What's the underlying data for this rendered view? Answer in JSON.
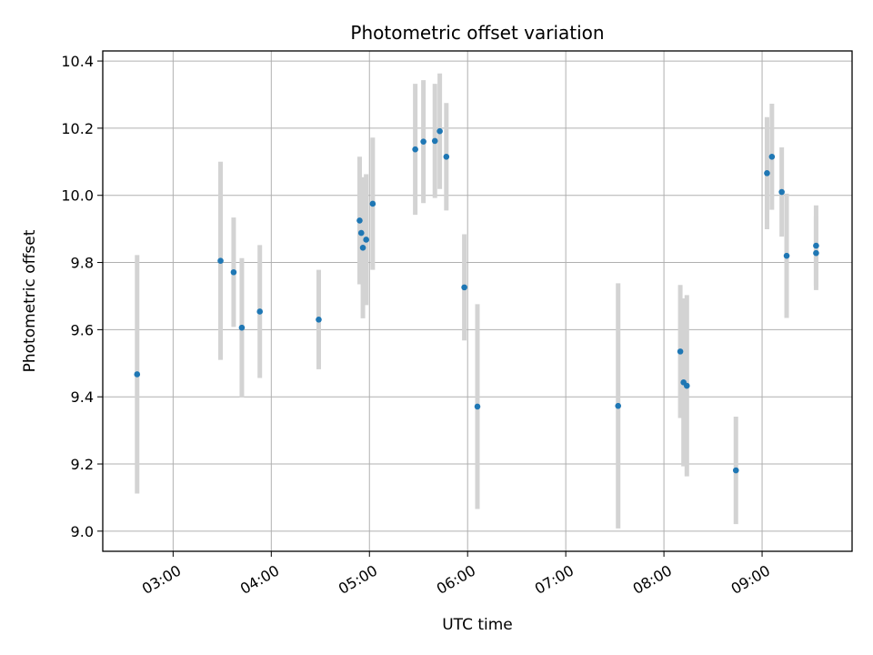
{
  "chart_data": {
    "type": "scatter",
    "title": "Photometric offset variation",
    "xlabel": "UTC time",
    "ylabel": "Photometric offset",
    "x_ticks": [
      "03:00",
      "04:00",
      "05:00",
      "06:00",
      "07:00",
      "08:00",
      "09:00"
    ],
    "y_ticks": [
      "9.0",
      "9.2",
      "9.4",
      "9.6",
      "9.8",
      "10.0",
      "10.2",
      "10.4"
    ],
    "xlim": [
      "02:17",
      "09:55"
    ],
    "ylim": [
      8.94,
      10.43
    ],
    "grid": true,
    "colors": {
      "point": "#1f77b4",
      "errorbar": "#d3d3d3",
      "grid": "#b0b0b0"
    },
    "series": [
      {
        "points": [
          {
            "t": "02:38",
            "y": 9.467,
            "err": 0.355
          },
          {
            "t": "03:29",
            "y": 9.805,
            "err": 0.295
          },
          {
            "t": "03:37",
            "y": 9.771,
            "err": 0.163
          },
          {
            "t": "03:42",
            "y": 9.606,
            "err": 0.207
          },
          {
            "t": "03:53",
            "y": 9.654,
            "err": 0.198
          },
          {
            "t": "04:29",
            "y": 9.63,
            "err": 0.148
          },
          {
            "t": "04:54",
            "y": 9.925,
            "err": 0.19
          },
          {
            "t": "04:55",
            "y": 9.888,
            "err": 0.13
          },
          {
            "t": "04:56",
            "y": 9.844,
            "err": 0.21
          },
          {
            "t": "04:58",
            "y": 9.868,
            "err": 0.195
          },
          {
            "t": "05:02",
            "y": 9.975,
            "err": 0.197
          },
          {
            "t": "05:28",
            "y": 10.137,
            "err": 0.195
          },
          {
            "t": "05:33",
            "y": 10.16,
            "err": 0.183
          },
          {
            "t": "05:40",
            "y": 10.162,
            "err": 0.17
          },
          {
            "t": "05:43",
            "y": 10.191,
            "err": 0.172
          },
          {
            "t": "05:47",
            "y": 10.115,
            "err": 0.16
          },
          {
            "t": "05:58",
            "y": 9.726,
            "err": 0.158
          },
          {
            "t": "06:06",
            "y": 9.371,
            "err": 0.305
          },
          {
            "t": "07:32",
            "y": 9.373,
            "err": 0.365
          },
          {
            "t": "08:10",
            "y": 9.535,
            "err": 0.198
          },
          {
            "t": "08:12",
            "y": 9.443,
            "err": 0.25
          },
          {
            "t": "08:14",
            "y": 9.433,
            "err": 0.27
          },
          {
            "t": "08:44",
            "y": 9.181,
            "err": 0.16
          },
          {
            "t": "09:03",
            "y": 10.066,
            "err": 0.167
          },
          {
            "t": "09:06",
            "y": 10.115,
            "err": 0.158
          },
          {
            "t": "09:12",
            "y": 10.01,
            "err": 0.133
          },
          {
            "t": "09:15",
            "y": 9.82,
            "err": 0.185
          },
          {
            "t": "09:33",
            "y": 9.828,
            "err": 0.11
          },
          {
            "t": "09:33",
            "y": 9.85,
            "err": 0.12
          }
        ]
      }
    ]
  }
}
